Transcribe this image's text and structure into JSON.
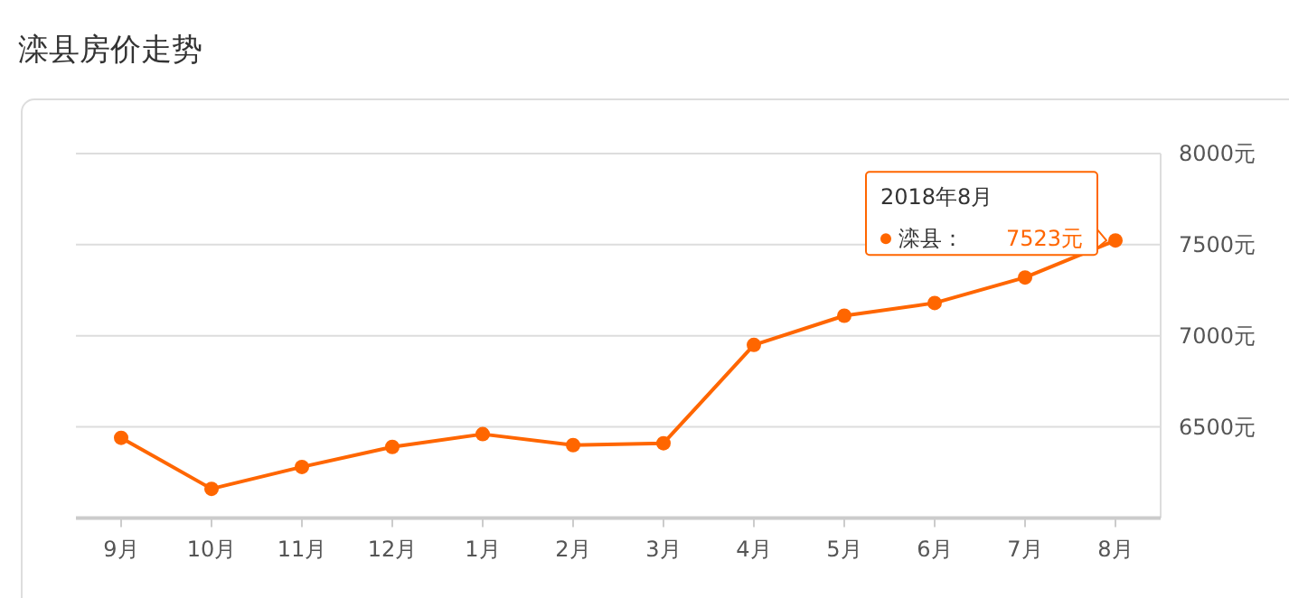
{
  "chart_data": {
    "type": "line",
    "title": "滦县房价走势",
    "categories": [
      "9月",
      "10月",
      "11月",
      "12月",
      "1月",
      "2月",
      "3月",
      "4月",
      "5月",
      "6月",
      "7月",
      "8月"
    ],
    "series": [
      {
        "name": "滦县：",
        "color": "#ff6600",
        "values": [
          6440,
          6160,
          6280,
          6390,
          6460,
          6400,
          6410,
          6950,
          7110,
          7180,
          7320,
          7523
        ],
        "value_labels": [
          null,
          null,
          null,
          null,
          null,
          null,
          null,
          null,
          null,
          null,
          null,
          "7523元"
        ]
      }
    ],
    "ylim": [
      6000,
      8000
    ],
    "yticks": [
      {
        "value": 6500,
        "label": "6500元"
      },
      {
        "value": 7000,
        "label": "7000元"
      },
      {
        "value": 7500,
        "label": "7500元"
      },
      {
        "value": 8000,
        "label": "8000元"
      }
    ],
    "grid": "y",
    "marker": "circle",
    "line_style": "solid",
    "annotations": [
      "2018年8月"
    ]
  }
}
